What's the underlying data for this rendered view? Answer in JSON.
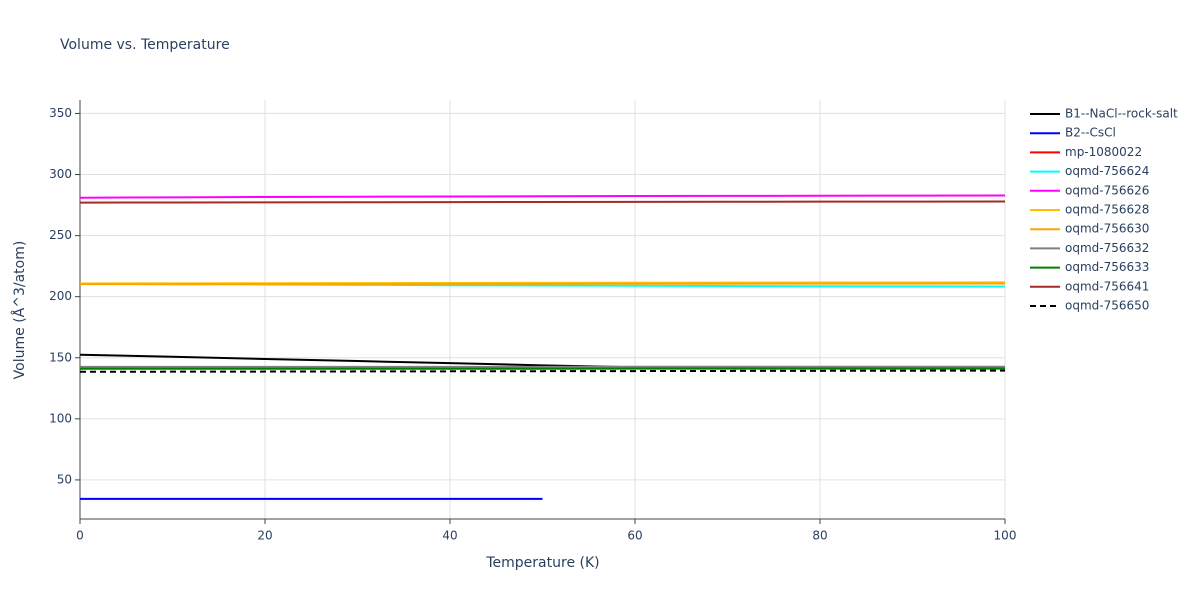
{
  "chart_data": {
    "type": "line",
    "title": "Volume vs. Temperature",
    "x_label": "Temperature (K)",
    "y_label": "Volume (Å^3/atom)",
    "x": [
      0,
      10,
      20,
      30,
      40,
      50,
      60,
      70,
      80,
      90,
      100
    ],
    "xlim": [
      0,
      100
    ],
    "xticks": [
      0,
      20,
      40,
      60,
      80,
      100
    ],
    "ylim": [
      18,
      361
    ],
    "yticks": [
      50,
      100,
      150,
      200,
      250,
      300,
      350
    ],
    "grid": true,
    "legend": "right",
    "series": [
      {
        "name": "B1--NaCl--rock-salt",
        "color": "#000000",
        "values": [
          152.5,
          150.8,
          149,
          147.3,
          145.6,
          143.8,
          142.2,
          141.6,
          141.5,
          141.5,
          141.5
        ]
      },
      {
        "name": "B2--CsCl",
        "color": "#0000ff",
        "values": [
          34.5,
          34.5,
          34.5,
          34.5,
          34.5,
          34.5,
          null,
          null,
          null,
          null,
          null
        ]
      },
      {
        "name": "mp-1080022",
        "color": "#ff0000",
        "values": [
          141.5,
          141.5,
          141.5,
          141.5,
          141.5,
          141.5,
          141.5,
          141.5,
          141.5,
          141.5,
          141.5
        ]
      },
      {
        "name": "oqmd-756624",
        "color": "#00ffff",
        "values": [
          210.5,
          210.2,
          210,
          209.7,
          209.4,
          209.1,
          208.9,
          208.7,
          208.5,
          208.4,
          208.3
        ]
      },
      {
        "name": "oqmd-756626",
        "color": "#ff00ff",
        "values": [
          281,
          281.3,
          281.6,
          281.8,
          282,
          282.2,
          282.4,
          282.5,
          282.6,
          282.7,
          282.8
        ]
      },
      {
        "name": "oqmd-756628",
        "color": "#ffc000",
        "values": [
          210.8,
          210.9,
          211,
          211.1,
          211.2,
          211.3,
          211.4,
          211.5,
          211.6,
          211.6,
          211.7
        ]
      },
      {
        "name": "oqmd-756630",
        "color": "#ffa500",
        "values": [
          210.3,
          210.3,
          210.4,
          210.4,
          210.5,
          210.5,
          210.6,
          210.6,
          210.7,
          210.7,
          210.8
        ]
      },
      {
        "name": "oqmd-756632",
        "color": "#808080",
        "values": [
          142.5,
          142.5,
          142.5,
          142.5,
          142.5,
          142.5,
          142.6,
          142.6,
          142.6,
          142.6,
          142.6
        ]
      },
      {
        "name": "oqmd-756633",
        "color": "#008000",
        "values": [
          141,
          141,
          141,
          141,
          141,
          141,
          141.1,
          141.1,
          141.1,
          141.1,
          141.1
        ]
      },
      {
        "name": "oqmd-756641",
        "color": "#a52a2a",
        "values": [
          277,
          277.1,
          277.2,
          277.3,
          277.4,
          277.5,
          277.6,
          277.7,
          277.8,
          277.8,
          277.9
        ]
      },
      {
        "name": "oqmd-756650",
        "color": "#000000",
        "dash": "dash",
        "values": [
          138.5,
          138.6,
          138.7,
          138.8,
          138.9,
          139,
          139.1,
          139.2,
          139.3,
          139.4,
          139.5
        ]
      }
    ]
  }
}
